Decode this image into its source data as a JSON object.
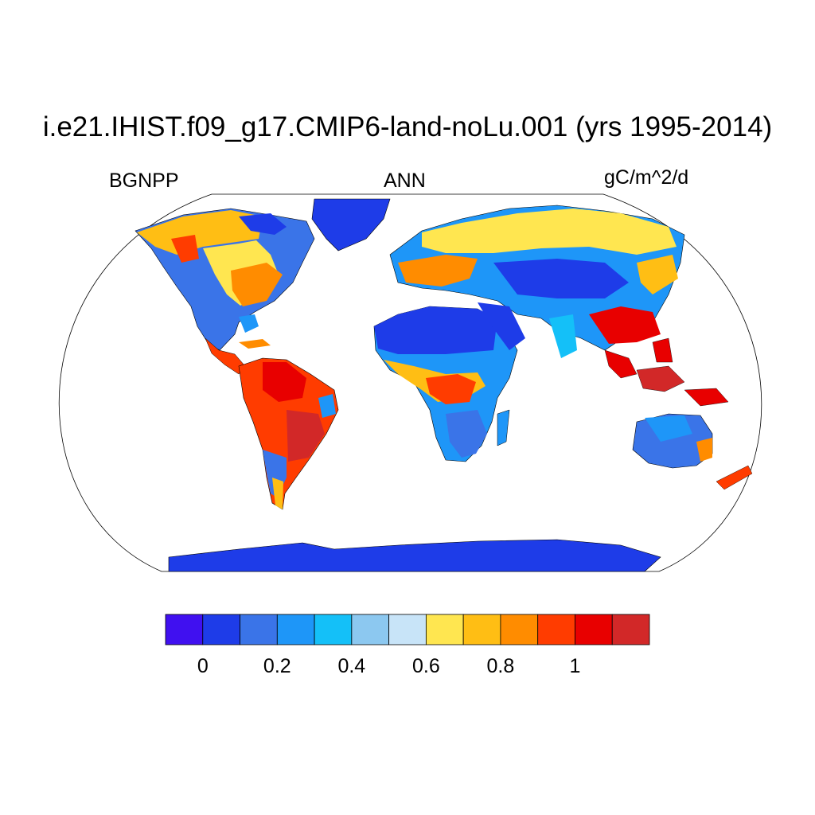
{
  "header": {
    "title": "i.e21.IHIST.f09_g17.CMIP6-land-noLu.001 (yrs 1995-2014)",
    "left_label": "BGNPP",
    "center_label": "ANN",
    "right_label": "gC/m^2/d"
  },
  "map": {
    "projection": "Robinson",
    "variable": "BGNPP",
    "season": "ANN",
    "units": "gC/m^2/d",
    "regions": [
      {
        "name": "North America (temperate east)",
        "level": 0.75
      },
      {
        "name": "North America (boreal)",
        "level": 0.7
      },
      {
        "name": "Greenland",
        "level": 0.05
      },
      {
        "name": "Amazon",
        "level": 1.05
      },
      {
        "name": "Southern South America",
        "level": 0.3
      },
      {
        "name": "Sahara",
        "level": 0.05
      },
      {
        "name": "Central Africa",
        "level": 1.0
      },
      {
        "name": "Southern Africa",
        "level": 0.35
      },
      {
        "name": "Europe",
        "level": 0.7
      },
      {
        "name": "Central Asia",
        "level": 0.15
      },
      {
        "name": "Siberia",
        "level": 0.65
      },
      {
        "name": "Southeast Asia / Indonesia",
        "level": 1.05
      },
      {
        "name": "Australia",
        "level": 0.3
      },
      {
        "name": "Antarctica",
        "level": 0.05
      }
    ]
  },
  "colorbar": {
    "colors": [
      "#4010f0",
      "#1e3ce8",
      "#3a74e8",
      "#1e96f8",
      "#14c0f8",
      "#8cc8f0",
      "#c8e4f8",
      "#ffe650",
      "#ffbe14",
      "#ff8c00",
      "#ff3c00",
      "#e80000",
      "#d22828"
    ],
    "tick_labels": [
      "0",
      "0.2",
      "0.4",
      "0.6",
      "0.8",
      "1"
    ]
  }
}
